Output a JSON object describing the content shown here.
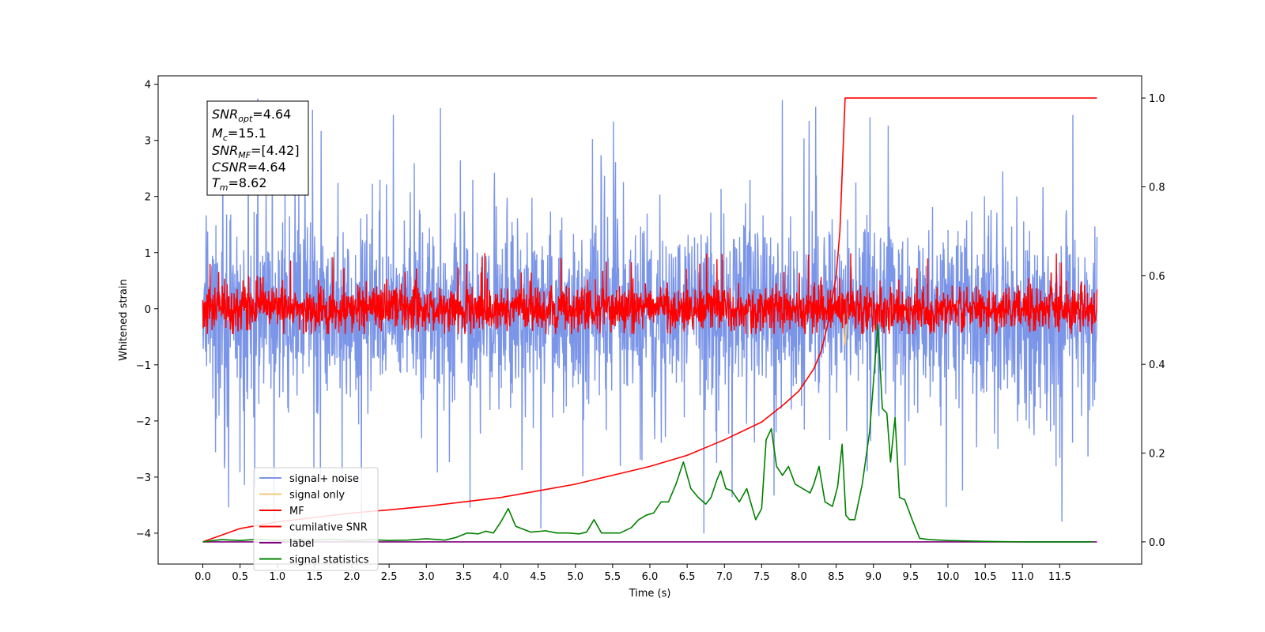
{
  "chart_data": {
    "type": "line",
    "xlabel": "Time (s)",
    "ylabel": "Whitened strain",
    "xlim": [
      -0.6,
      12.6
    ],
    "ylim": [
      -4.55,
      4.15
    ],
    "ylim_right": [
      -0.05,
      1.05
    ],
    "x_ticks": [
      "0.0",
      "0.5",
      "1.0",
      "1.5",
      "2.0",
      "2.5",
      "3.0",
      "3.5",
      "4.0",
      "4.5",
      "5.0",
      "5.5",
      "6.0",
      "6.5",
      "7.0",
      "7.5",
      "8.0",
      "8.5",
      "9.0",
      "9.5",
      "10.0",
      "10.5",
      "11.0",
      "11.5"
    ],
    "y_ticks_left": [
      "4",
      "3",
      "2",
      "1",
      "0",
      "−1",
      "−2",
      "−3",
      "−4"
    ],
    "y_ticks_right": [
      "1.0",
      "0.8",
      "0.6",
      "0.4",
      "0.2",
      "0.0"
    ],
    "grid": false,
    "legend_position": "lower-left",
    "info_box": {
      "snr_opt": {
        "base": "SNR",
        "sub": "opt",
        "value": "=4.64"
      },
      "mc": {
        "base": "M",
        "sub": "c",
        "value": "=15.1"
      },
      "snr_mf": {
        "base": "SNR",
        "sub": "MF",
        "value": "=[4.42]"
      },
      "csnr": {
        "base": "CSNR",
        "sub": "",
        "value": "=4.64"
      },
      "tm": {
        "base": "T",
        "sub": "m",
        "value": "=8.62"
      }
    },
    "series": [
      {
        "name": "signal+ noise",
        "color": "#7b95e8",
        "axis": "left",
        "kind": "noise",
        "x_range": [
          0.0,
          12.0
        ],
        "center": -0.05,
        "typical_band": [
          -1.6,
          1.5
        ],
        "extreme_range": [
          -4.1,
          3.75
        ]
      },
      {
        "name": "signal only",
        "color": "#f5c87a",
        "axis": "left",
        "x": [
          8.45,
          8.5,
          8.55,
          8.58,
          8.6,
          8.62,
          8.65,
          8.7
        ],
        "values": [
          0.0,
          0.05,
          0.15,
          0.25,
          -0.4,
          -0.65,
          -0.1,
          0.0
        ]
      },
      {
        "name": "MF",
        "color": "#ff0000",
        "axis": "left",
        "kind": "noise",
        "x_range": [
          0.0,
          12.0
        ],
        "center": 0.0,
        "typical_band": [
          -0.35,
          0.45
        ],
        "extreme_range": [
          -0.45,
          1.0
        ]
      },
      {
        "name": "cumilative SNR",
        "color": "#ff0000",
        "axis": "right",
        "x": [
          0.0,
          0.5,
          1.0,
          1.5,
          2.0,
          2.5,
          3.0,
          3.5,
          4.0,
          4.5,
          5.0,
          5.5,
          6.0,
          6.5,
          7.0,
          7.5,
          7.8,
          8.0,
          8.2,
          8.3,
          8.4,
          8.5,
          8.55,
          8.62,
          12.0
        ],
        "values": [
          0.0,
          0.03,
          0.045,
          0.055,
          0.065,
          0.072,
          0.08,
          0.09,
          0.1,
          0.115,
          0.13,
          0.15,
          0.17,
          0.195,
          0.23,
          0.27,
          0.31,
          0.34,
          0.39,
          0.43,
          0.5,
          0.6,
          0.7,
          1.0,
          1.0
        ]
      },
      {
        "name": "label",
        "color": "#800080",
        "axis": "right",
        "x": [
          0.0,
          12.0
        ],
        "values": [
          0.0,
          0.0
        ]
      },
      {
        "name": "signal statistics",
        "color": "#008000",
        "axis": "right",
        "x": [
          0.0,
          0.25,
          0.5,
          0.75,
          1.0,
          1.25,
          1.5,
          1.75,
          2.0,
          2.25,
          2.5,
          2.75,
          3.0,
          3.25,
          3.4,
          3.55,
          3.7,
          3.8,
          3.9,
          4.0,
          4.1,
          4.2,
          4.4,
          4.6,
          4.75,
          4.9,
          5.05,
          5.15,
          5.25,
          5.35,
          5.45,
          5.6,
          5.75,
          5.85,
          5.95,
          6.05,
          6.15,
          6.25,
          6.35,
          6.45,
          6.55,
          6.65,
          6.75,
          6.82,
          6.9,
          6.95,
          7.02,
          7.1,
          7.2,
          7.3,
          7.42,
          7.5,
          7.56,
          7.63,
          7.7,
          7.78,
          7.86,
          7.95,
          8.05,
          8.15,
          8.2,
          8.27,
          8.35,
          8.45,
          8.52,
          8.58,
          8.63,
          8.68,
          8.75,
          8.85,
          8.95,
          9.06,
          9.12,
          9.18,
          9.23,
          9.29,
          9.35,
          9.42,
          9.52,
          9.62,
          9.75,
          10.0,
          10.25,
          10.5,
          11.0,
          11.5,
          11.95
        ],
        "values": [
          0.0,
          0.005,
          0.003,
          0.006,
          0.003,
          0.005,
          0.004,
          0.006,
          0.003,
          0.005,
          0.003,
          0.004,
          0.007,
          0.004,
          0.01,
          0.02,
          0.018,
          0.024,
          0.02,
          0.045,
          0.075,
          0.035,
          0.022,
          0.025,
          0.02,
          0.02,
          0.018,
          0.022,
          0.05,
          0.02,
          0.02,
          0.02,
          0.032,
          0.05,
          0.06,
          0.065,
          0.09,
          0.09,
          0.13,
          0.18,
          0.12,
          0.1,
          0.085,
          0.1,
          0.14,
          0.16,
          0.12,
          0.115,
          0.09,
          0.12,
          0.05,
          0.075,
          0.23,
          0.255,
          0.17,
          0.15,
          0.17,
          0.13,
          0.12,
          0.11,
          0.13,
          0.17,
          0.09,
          0.08,
          0.125,
          0.22,
          0.06,
          0.05,
          0.05,
          0.13,
          0.25,
          0.49,
          0.3,
          0.29,
          0.18,
          0.28,
          0.1,
          0.095,
          0.05,
          0.008,
          0.005,
          0.003,
          0.002,
          0.001,
          0.0,
          0.0,
          0.0
        ]
      }
    ]
  }
}
